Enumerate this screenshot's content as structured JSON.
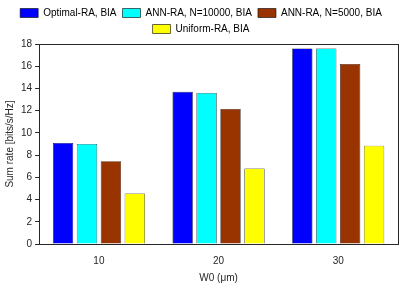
{
  "chart_data": {
    "type": "bar",
    "categories": [
      10,
      20,
      30
    ],
    "x_label": "W0 (μm)",
    "y_label": "Sum rate [bits/s/Hz]",
    "series": [
      {
        "name": "Optimal-RA, BIA",
        "color": "#0000ff",
        "values": [
          9.1,
          13.7,
          17.6
        ]
      },
      {
        "name": "ANN-RA, N=10000, BIA",
        "color": "#00ffff",
        "values": [
          9.0,
          13.6,
          17.6
        ]
      },
      {
        "name": "ANN-RA, N=5000, BIA",
        "color": "#993300",
        "values": [
          7.45,
          12.15,
          16.2
        ]
      },
      {
        "name": "Uniform-RA, BIA",
        "color": "#ffff00",
        "values": [
          4.55,
          6.8,
          8.85
        ]
      }
    ],
    "ylim": [
      0,
      18
    ],
    "yticks": [
      0,
      2,
      4,
      6,
      8,
      10,
      12,
      14,
      16,
      18
    ],
    "grid": false,
    "legend": "top"
  }
}
